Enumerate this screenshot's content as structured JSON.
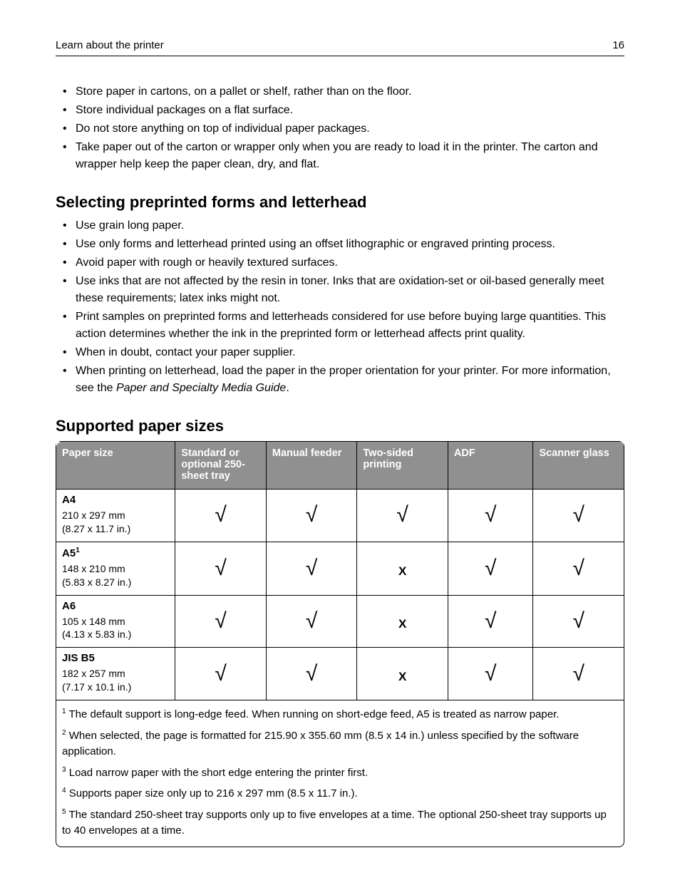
{
  "header": {
    "title": "Learn about the printer",
    "page_number": "16"
  },
  "bullets_top": [
    "Store paper in cartons, on a pallet or shelf, rather than on the floor.",
    "Store individual packages on a flat surface.",
    "Do not store anything on top of individual paper packages.",
    "Take paper out of the carton or wrapper only when you are ready to load it in the printer. The carton and wrapper help keep the paper clean, dry, and flat."
  ],
  "section1": {
    "heading": "Selecting preprinted forms and letterhead",
    "bullets": [
      "Use grain long paper.",
      "Use only forms and letterhead printed using an offset lithographic or engraved printing process.",
      "Avoid paper with rough or heavily textured surfaces.",
      "Use inks that are not affected by the resin in toner. Inks that are oxidation-set or oil-based generally meet these requirements; latex inks might not.",
      "Print samples on preprinted forms and letterheads considered for use before buying large quantities. This action determines whether the ink in the preprinted form or letterhead affects print quality.",
      "When in doubt, contact your paper supplier."
    ],
    "bullet_last_pre": "When printing on letterhead, load the paper in the proper orientation for your printer. For more information, see the ",
    "bullet_last_italic": "Paper and Specialty Media Guide",
    "bullet_last_post": "."
  },
  "section2": {
    "heading": "Supported paper sizes",
    "columns": [
      "Paper size",
      "Standard or optional 250-sheet tray",
      "Manual feeder",
      "Two-sided printing",
      "ADF",
      "Scanner glass"
    ],
    "rows": [
      {
        "name": "A4",
        "sup": "",
        "dims_mm": "210 x 297 mm",
        "dims_in": "(8.27 x 11.7 in.)",
        "marks": [
          "y",
          "y",
          "y",
          "y",
          "y"
        ]
      },
      {
        "name": "A5",
        "sup": "1",
        "dims_mm": "148 x 210 mm",
        "dims_in": "(5.83 x 8.27 in.)",
        "marks": [
          "y",
          "y",
          "x",
          "y",
          "y"
        ]
      },
      {
        "name": "A6",
        "sup": "",
        "dims_mm": "105 x 148 mm",
        "dims_in": "(4.13 x 5.83 in.)",
        "marks": [
          "y",
          "y",
          "x",
          "y",
          "y"
        ]
      },
      {
        "name": "JIS B5",
        "sup": "",
        "dims_mm": "182 x 257 mm",
        "dims_in": "(7.17 x 10.1 in.)",
        "marks": [
          "y",
          "y",
          "x",
          "y",
          "y"
        ]
      }
    ],
    "footnotes": [
      {
        "sup": "1",
        "text": " The default support is long-edge feed. When running on short-edge feed, A5 is treated as narrow paper."
      },
      {
        "sup": "2",
        "text": " When selected, the page is formatted for 215.90 x 355.60 mm (8.5 x 14 in.) unless specified by the software application."
      },
      {
        "sup": "3",
        "text": " Load narrow paper with the short edge entering the printer first."
      },
      {
        "sup": "4",
        "text": " Supports paper size only up to 216 x 297 mm (8.5 x 11.7 in.)."
      },
      {
        "sup": "5",
        "text": " The standard 250-sheet tray supports only up to five envelopes at a time. The optional 250-sheet tray supports up to 40 envelopes at a time."
      }
    ],
    "check_glyph": "√",
    "x_glyph": "X",
    "styling": {
      "header_bg": "#909090",
      "header_text": "#ffffff",
      "border_color": "#000000",
      "check_fontsize": 30,
      "x_fontsize": 17,
      "col_widths_pct": [
        21,
        16,
        16,
        16,
        15,
        16
      ]
    }
  }
}
